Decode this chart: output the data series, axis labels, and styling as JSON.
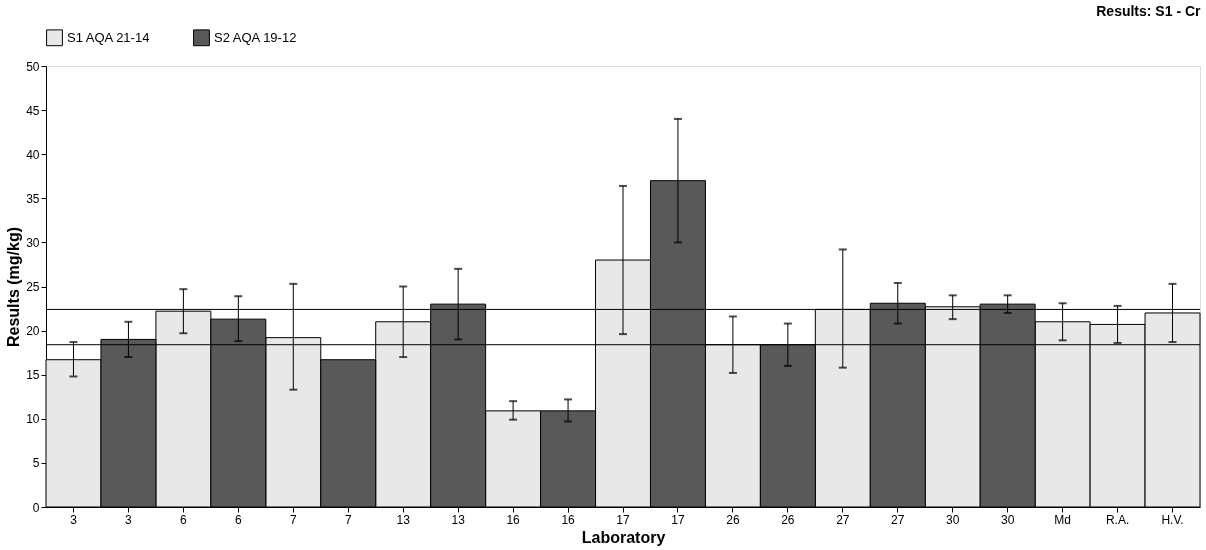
{
  "chart_data": {
    "type": "bar",
    "title": "Results: S1 - Cr",
    "xlabel": "Laboratory",
    "ylabel": "Results (mg/kg)",
    "categories": [
      "3",
      "3",
      "6",
      "6",
      "7",
      "7",
      "13",
      "13",
      "16",
      "16",
      "17",
      "17",
      "26",
      "26",
      "27",
      "27",
      "30",
      "30",
      "Md",
      "R.A.",
      "H.V."
    ],
    "series": [
      {
        "name": "S1 AQA 21-14",
        "color": "#e8e8e8",
        "values": [
          16.7,
          null,
          22.2,
          null,
          19.2,
          null,
          21,
          null,
          10.9,
          null,
          28,
          null,
          18.4,
          null,
          22.4,
          null,
          22.7,
          null,
          21,
          20.7,
          22
        ],
        "errors": [
          [
            14.8,
            18.7
          ],
          null,
          [
            19.7,
            24.7
          ],
          null,
          [
            13.3,
            25.3
          ],
          null,
          [
            17,
            25
          ],
          null,
          [
            9.9,
            12
          ],
          null,
          [
            19.6,
            36.4
          ],
          null,
          [
            15.2,
            21.6
          ],
          null,
          [
            15.8,
            29.2
          ],
          null,
          [
            21.3,
            24
          ],
          null,
          [
            18.9,
            23.1
          ],
          [
            18.6,
            22.8
          ],
          [
            18.7,
            25.3
          ]
        ]
      },
      {
        "name": "S2 AQA 19-12",
        "color": "#595959",
        "values": [
          null,
          19,
          null,
          21.3,
          null,
          16.7,
          null,
          23,
          null,
          10.9,
          null,
          37,
          null,
          18.4,
          null,
          23.1,
          null,
          23,
          null,
          null,
          null
        ],
        "errors": [
          null,
          [
            17,
            21
          ],
          null,
          [
            18.8,
            23.9
          ],
          null,
          null,
          null,
          [
            19,
            27
          ],
          null,
          [
            9.7,
            12.2
          ],
          null,
          [
            30,
            44
          ],
          null,
          [
            16,
            20.8
          ],
          null,
          [
            20.8,
            25.4
          ],
          null,
          [
            22,
            24
          ],
          null,
          null,
          null
        ]
      }
    ],
    "ylim": [
      0,
      50
    ],
    "yticks": [
      0,
      5,
      10,
      15,
      20,
      25,
      30,
      35,
      40,
      45,
      50
    ],
    "ref_lines": [
      {
        "axis": "y",
        "value": 22.4,
        "label": null
      },
      {
        "axis": "y",
        "value": 18.4,
        "label": null
      }
    ],
    "grid": false,
    "legend": "top"
  }
}
